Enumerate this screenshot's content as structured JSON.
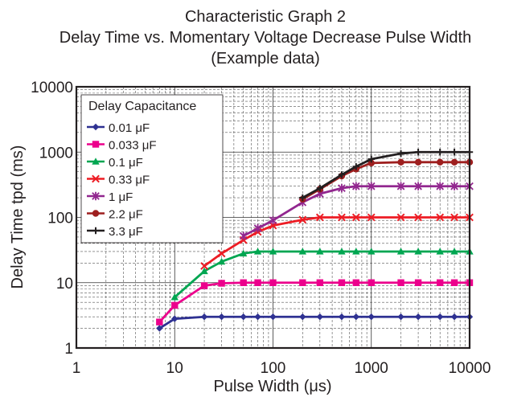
{
  "chart_data": {
    "type": "line",
    "title_lines": [
      "Characteristic Graph 2",
      "Delay Time vs. Momentary Voltage Decrease Pulse Width",
      "(Example data)"
    ],
    "xlabel": "Pulse Width  (μs)",
    "ylabel": "Delay Time  tpd  (ms)",
    "x_scale": "log",
    "y_scale": "log",
    "xlim": [
      1,
      10000
    ],
    "ylim": [
      1,
      10000
    ],
    "x_ticks": [
      1,
      10,
      100,
      1000,
      10000
    ],
    "x_tick_labels": [
      "1",
      "10",
      "100",
      "1000",
      "10000"
    ],
    "y_ticks": [
      1,
      10,
      100,
      1000,
      10000
    ],
    "y_tick_labels": [
      "1",
      "10",
      "100",
      "1000",
      "10000"
    ],
    "grid": true,
    "legend": {
      "title": "Delay Capacitance",
      "placement": "top-left"
    },
    "series": [
      {
        "name": "0.01 μF",
        "color": "#2e3192",
        "marker": "diamond",
        "x": [
          7,
          10,
          20,
          30,
          50,
          70,
          100,
          200,
          300,
          500,
          700,
          1000,
          2000,
          3000,
          5000,
          7000,
          10000
        ],
        "y": [
          2.0,
          2.8,
          3.0,
          3.0,
          3.0,
          3.0,
          3.0,
          3.0,
          3.0,
          3.0,
          3.0,
          3.0,
          3.0,
          3.0,
          3.0,
          3.0,
          3.0
        ]
      },
      {
        "name": "0.033 μF",
        "color": "#ec008c",
        "marker": "square",
        "x": [
          7,
          10,
          20,
          30,
          50,
          70,
          100,
          200,
          300,
          500,
          700,
          1000,
          2000,
          3000,
          5000,
          7000,
          10000
        ],
        "y": [
          2.5,
          4.5,
          9.0,
          9.8,
          10.0,
          10.0,
          10.0,
          10.0,
          10.0,
          10.0,
          10.0,
          10.0,
          10.0,
          10.0,
          10.0,
          10.0,
          10.0
        ]
      },
      {
        "name": "0.1 μF",
        "color": "#00a651",
        "marker": "triangle",
        "x": [
          10,
          20,
          30,
          50,
          70,
          100,
          200,
          300,
          500,
          700,
          1000,
          2000,
          3000,
          5000,
          7000,
          10000
        ],
        "y": [
          6.0,
          15.0,
          21.0,
          28.0,
          30.0,
          30.0,
          30.0,
          30.0,
          30.0,
          30.0,
          30.0,
          30.0,
          30.0,
          30.0,
          30.0,
          30.0
        ]
      },
      {
        "name": "0.33 μF",
        "color": "#ed1c24",
        "marker": "x",
        "x": [
          20,
          30,
          50,
          70,
          100,
          200,
          300,
          500,
          700,
          1000,
          2000,
          3000,
          5000,
          7000,
          10000
        ],
        "y": [
          18,
          28,
          45,
          60,
          75,
          92,
          100,
          100,
          100,
          100,
          100,
          100,
          100,
          100,
          100
        ]
      },
      {
        "name": "1 μF",
        "color": "#92278f",
        "marker": "asterisk",
        "x": [
          50,
          70,
          100,
          200,
          300,
          500,
          700,
          1000,
          2000,
          3000,
          5000,
          7000,
          10000
        ],
        "y": [
          52,
          68,
          90,
          170,
          230,
          280,
          300,
          300,
          300,
          300,
          300,
          300,
          300
        ]
      },
      {
        "name": "2.2 μF",
        "color": "#9e1f1f",
        "marker": "circle",
        "x": [
          200,
          300,
          500,
          700,
          1000,
          2000,
          3000,
          5000,
          7000,
          10000
        ],
        "y": [
          190,
          270,
          430,
          550,
          680,
          700,
          700,
          700,
          700,
          700
        ]
      },
      {
        "name": "3.3 μF",
        "color": "#231f20",
        "marker": "plus",
        "x": [
          200,
          300,
          500,
          700,
          1000,
          2000,
          3000,
          5000,
          7000,
          10000
        ],
        "y": [
          200,
          280,
          450,
          600,
          780,
          950,
          1000,
          1000,
          1000,
          1000
        ]
      }
    ]
  }
}
